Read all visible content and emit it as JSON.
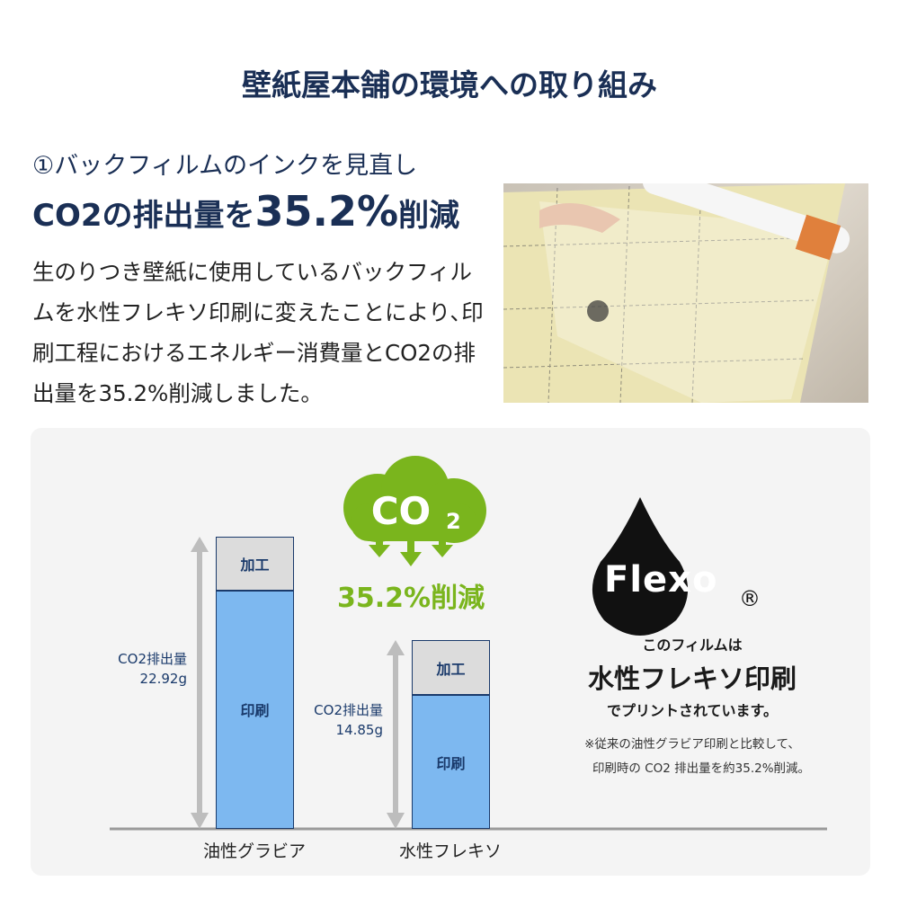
{
  "title": "壁紙屋本舗の環境への取り組み",
  "heading": {
    "line1": "①バックフィルムのインクを見直し",
    "line2_prefix": "CO2の排出量を",
    "line2_value": "35.2%",
    "line2_suffix": "削減"
  },
  "description": "生のりつき壁紙に使用しているバックフィルムを水性フレキソ印刷に変えたことにより､印刷工程におけるエネルギー消費量とCO2の排出量を35.2%削減しました。",
  "reduction": {
    "cloud_label": "CO2",
    "value": "35.2%削減",
    "color": "#7ab51d"
  },
  "chart_data": {
    "type": "bar",
    "stacked": true,
    "categories": [
      "油性グラビア",
      "水性フレキソ"
    ],
    "series": [
      {
        "name": "印刷",
        "values": [
          18.7,
          10.5
        ],
        "color": "#7db8f0"
      },
      {
        "name": "加工",
        "values": [
          4.2,
          4.3
        ],
        "color": "#dcdcdc"
      }
    ],
    "totals": [
      {
        "label": "CO2排出量",
        "value": "22.92g"
      },
      {
        "label": "CO2排出量",
        "value": "14.85g"
      }
    ],
    "ylim": [
      0,
      22.92
    ]
  },
  "flexo": {
    "logo_text": "Flexo",
    "registered": "®",
    "line1": "このフィルムは",
    "line2": "水性フレキソ印刷",
    "line3": "でプリントされています。",
    "note1": "※従来の油性グラビア印刷と比較して、",
    "note2": "印刷時の CO2 排出量を約35.2%削減。"
  }
}
